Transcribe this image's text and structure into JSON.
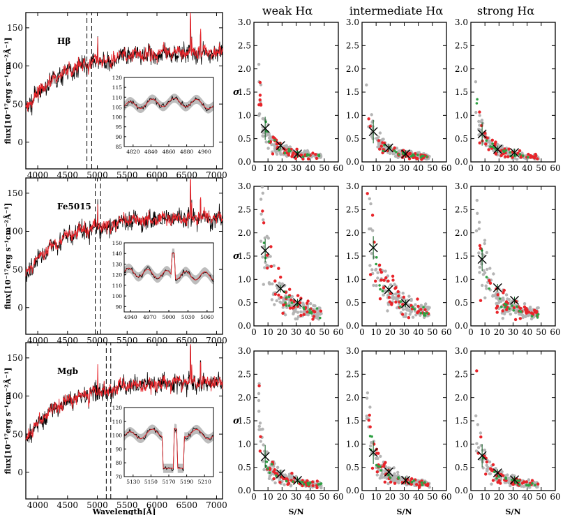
{
  "colors": {
    "model": "#e8242a",
    "observed": "#000000",
    "band": "#bdbdbd",
    "grey_pts": "#b4b4b4",
    "red_pts": "#e8242a",
    "green_pts": "#2ea043",
    "marker": "#0a5a1e"
  },
  "columns": [
    "weak Hα",
    "intermediate Hα",
    "strong Hα"
  ],
  "spectra_ylabel": "flux[10⁻¹⁷erg s⁻¹cm⁻²Å⁻¹]",
  "spectra_xlabel": "Wavelength[Å]",
  "scatter_ylabel": "σ",
  "scatter_xlabel": "S/N",
  "chart_data": [
    {
      "type": "line",
      "panel": "spectrum",
      "label": "Hβ",
      "xlim": [
        3800,
        7100
      ],
      "ylim": [
        -35,
        170
      ],
      "xticks": [
        4000,
        4500,
        5000,
        5500,
        6000,
        6500,
        7000
      ],
      "yticks": [
        0,
        50,
        100,
        150
      ],
      "index_band_lines": [
        4825,
        4905
      ],
      "series": [
        {
          "x": [
            3800,
            4000,
            4200,
            4400,
            4600,
            4800,
            5000,
            5200,
            5500,
            6000,
            6500,
            6560,
            6700,
            7000,
            7100
          ],
          "y": [
            45,
            55,
            80,
            95,
            100,
            104,
            110,
            112,
            117,
            120,
            123,
            165,
            125,
            120,
            118
          ]
        }
      ],
      "inset": {
        "xlim": [
          4810,
          4910
        ],
        "ylim": [
          85,
          120
        ],
        "xticks": [
          4820,
          4840,
          4860,
          4880,
          4900
        ],
        "yticks": [
          85,
          90,
          95,
          100,
          105,
          110,
          115,
          120
        ]
      }
    },
    {
      "type": "line",
      "panel": "spectrum",
      "label": "Fe5015",
      "xlim": [
        3800,
        7100
      ],
      "ylim": [
        -35,
        170
      ],
      "xticks": [
        4000,
        4500,
        5000,
        5500,
        6000,
        6500,
        7000
      ],
      "yticks": [
        0,
        50,
        100,
        150
      ],
      "index_band_lines": [
        4965,
        5055
      ],
      "series": [
        {
          "x": [
            3800,
            4000,
            4200,
            4400,
            4600,
            4800,
            5000,
            5200,
            5500,
            6000,
            6500,
            6560,
            6700,
            7000,
            7100
          ],
          "y": [
            45,
            55,
            80,
            95,
            100,
            104,
            110,
            112,
            117,
            120,
            123,
            165,
            125,
            120,
            118
          ]
        }
      ],
      "inset": {
        "xlim": [
          4930,
          5070
        ],
        "ylim": [
          85,
          150
        ],
        "xticks": [
          4940,
          4970,
          5000,
          5030,
          5060
        ],
        "yticks": [
          90,
          100,
          110,
          120,
          130,
          140,
          150
        ]
      }
    },
    {
      "type": "line",
      "panel": "spectrum",
      "label": "Mgb",
      "xlim": [
        3800,
        7100
      ],
      "ylim": [
        -35,
        170
      ],
      "xticks": [
        4000,
        4500,
        5000,
        5500,
        6000,
        6500,
        7000
      ],
      "yticks": [
        0,
        50,
        100,
        150
      ],
      "index_band_lines": [
        5150,
        5225
      ],
      "series": [
        {
          "x": [
            3800,
            4000,
            4200,
            4400,
            4600,
            4800,
            5000,
            5200,
            5500,
            6000,
            6500,
            6560,
            6700,
            7000,
            7100
          ],
          "y": [
            45,
            55,
            80,
            95,
            100,
            104,
            110,
            112,
            117,
            120,
            123,
            165,
            125,
            120,
            118
          ]
        }
      ],
      "inset": {
        "xlim": [
          5120,
          5220
        ],
        "ylim": [
          70,
          120
        ],
        "xticks": [
          5130,
          5150,
          5170,
          5190,
          5210
        ],
        "yticks": [
          70,
          80,
          90,
          100,
          110,
          120
        ]
      }
    },
    {
      "type": "scatter",
      "panel": "sigma_vs_sn",
      "grid": "3x3",
      "xlim": [
        0,
        60
      ],
      "ylim": [
        0,
        3
      ],
      "xticks": [
        0,
        10,
        20,
        30,
        40,
        50,
        60
      ],
      "yticks": [
        0.0,
        0.5,
        1.0,
        1.5,
        2.0,
        2.5,
        3.0
      ],
      "rows": [
        {
          "index": "Hβ",
          "markers_x": [
            8,
            19,
            31
          ],
          "markers_y": [
            [
              0.72,
              0.35,
              0.17
            ],
            [
              0.65,
              0.3,
              0.17
            ],
            [
              0.6,
              0.27,
              0.2
            ]
          ]
        },
        {
          "index": "Fe5015",
          "markers_x": [
            8,
            19,
            31
          ],
          "markers_y": [
            [
              1.62,
              0.8,
              0.5
            ],
            [
              1.68,
              0.78,
              0.48
            ],
            [
              1.43,
              0.82,
              0.55
            ]
          ]
        },
        {
          "index": "Mgb",
          "markers_x": [
            8,
            19,
            31
          ],
          "markers_y": [
            [
              0.73,
              0.36,
              0.22
            ],
            [
              0.82,
              0.4,
              0.22
            ],
            [
              0.75,
              0.38,
              0.23
            ]
          ]
        }
      ]
    }
  ]
}
